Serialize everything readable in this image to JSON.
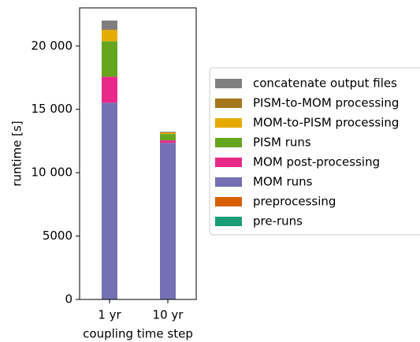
{
  "chart_data": {
    "type": "stacked_bar",
    "x_label": "coupling time step",
    "y_label": "runtime [s]",
    "categories": [
      "1 yr",
      "10 yr"
    ],
    "ylim": [
      0,
      23000
    ],
    "yticks": [
      0,
      5000,
      {
        "value": 10000,
        "label": "10 000"
      },
      {
        "value": 15000,
        "label": "15 000"
      },
      {
        "value": 20000,
        "label": "20 000"
      }
    ],
    "series": [
      {
        "name": "pre-runs",
        "color": "#1b9e77",
        "values": [
          10,
          10
        ]
      },
      {
        "name": "preprocessing",
        "color": "#d95f02",
        "values": [
          10,
          10
        ]
      },
      {
        "name": "MOM runs",
        "color": "#7570b3",
        "values": [
          15500,
          12330
        ]
      },
      {
        "name": "MOM post-processing",
        "color": "#e7298a",
        "values": [
          2050,
          200
        ]
      },
      {
        "name": "PISM runs",
        "color": "#66a61e",
        "values": [
          2800,
          500
        ]
      },
      {
        "name": "MOM-to-PISM processing",
        "color": "#e6ab02",
        "values": [
          880,
          100
        ]
      },
      {
        "name": "PISM-to-MOM processing",
        "color": "#a6761d",
        "values": [
          50,
          30
        ]
      },
      {
        "name": "concatenate output files",
        "color": "#7f7f7f",
        "values": [
          700,
          50
        ]
      }
    ]
  }
}
